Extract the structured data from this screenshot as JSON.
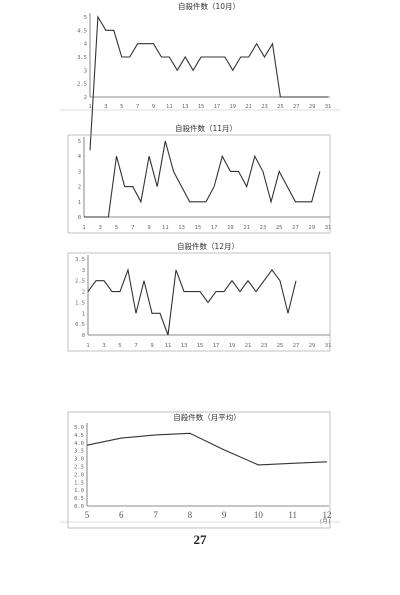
{
  "page_number": "27",
  "chart_data": [
    {
      "type": "line",
      "title": "自殺件数（10月）",
      "x": [
        1,
        2,
        3,
        4,
        5,
        6,
        7,
        8,
        9,
        10,
        11,
        12,
        13,
        14,
        15,
        16,
        17,
        18,
        19,
        20,
        21,
        22,
        23,
        24,
        25,
        26,
        27,
        28,
        29,
        30,
        31
      ],
      "series": [
        {
          "values": [
            0,
            5,
            4.5,
            4.5,
            3.5,
            3.5,
            4,
            4,
            4,
            3.5,
            3.5,
            3,
            3.5,
            3,
            3.5,
            3.5,
            3.5,
            3.5,
            3,
            3.5,
            3.5,
            4,
            3.5,
            4,
            2,
            2,
            2,
            2,
            2,
            2,
            2
          ]
        }
      ],
      "ylim": [
        2,
        5
      ],
      "yticks": [
        "2",
        "2.5",
        "3",
        "3.5",
        "4",
        "4.5",
        "5"
      ],
      "xticks": [
        "1",
        "3",
        "5",
        "7",
        "9",
        "11",
        "13",
        "15",
        "17",
        "19",
        "21",
        "23",
        "25",
        "27",
        "29",
        "31"
      ],
      "grid": false
    },
    {
      "type": "line",
      "title": "自殺件数（11月）",
      "x": [
        1,
        2,
        3,
        4,
        5,
        6,
        7,
        8,
        9,
        10,
        11,
        12,
        13,
        14,
        15,
        16,
        17,
        18,
        19,
        20,
        21,
        22,
        23,
        24,
        25,
        26,
        27,
        28,
        29,
        30
      ],
      "series": [
        {
          "values": [
            0,
            0,
            0,
            0,
            4,
            2,
            2,
            1,
            4,
            2,
            5,
            3,
            2,
            1,
            1,
            1,
            2,
            4,
            3,
            3,
            2,
            4,
            3,
            1,
            3,
            2,
            1,
            1,
            1,
            3
          ]
        }
      ],
      "ylim": [
        0,
        5
      ],
      "yticks": [
        "0",
        "1",
        "2",
        "3",
        "4",
        "5"
      ],
      "xticks": [
        "1",
        "3",
        "5",
        "7",
        "9",
        "11",
        "13",
        "15",
        "17",
        "19",
        "21",
        "23",
        "25",
        "27",
        "29",
        "31"
      ],
      "grid": false
    },
    {
      "type": "line",
      "title": "自殺件数（12月）",
      "x": [
        1,
        2,
        3,
        4,
        5,
        6,
        7,
        8,
        9,
        10,
        11,
        12,
        13,
        14,
        15,
        16,
        17,
        18,
        19,
        20,
        21,
        22,
        23,
        24,
        25,
        26,
        27
      ],
      "series": [
        {
          "values": [
            2,
            2.5,
            2.5,
            2,
            2,
            3,
            1,
            2.5,
            1,
            1,
            0,
            3,
            2,
            2,
            2,
            1.5,
            2,
            2,
            2.5,
            2,
            2.5,
            2,
            2.5,
            3,
            2.5,
            1,
            2.5
          ]
        }
      ],
      "ylim": [
        0,
        3.5
      ],
      "yticks": [
        "0",
        "0.5",
        "1",
        "1.5",
        "2",
        "2.5",
        "3",
        "3.5"
      ],
      "xticks": [
        "1",
        "3",
        "5",
        "7",
        "9",
        "11",
        "13",
        "15",
        "17",
        "19",
        "21",
        "23",
        "25",
        "27",
        "29",
        "31"
      ],
      "grid": false
    },
    {
      "type": "line",
      "title": "自殺件数（月平均）",
      "x": [
        5,
        6,
        7,
        8,
        9,
        10,
        11,
        12
      ],
      "series": [
        {
          "values": [
            3.85,
            4.3,
            4.5,
            4.6,
            3.55,
            2.6,
            2.7,
            2.8
          ]
        }
      ],
      "ylim": [
        0,
        5
      ],
      "yticks": [
        "0.0",
        "0.5",
        "1.0",
        "1.5",
        "2.0",
        "2.5",
        "3.0",
        "3.5",
        "4.0",
        "4.5",
        "5.0"
      ],
      "xticks": [
        "5",
        "6",
        "7",
        "8",
        "9",
        "10",
        "11",
        "12"
      ],
      "xunit": "(月)",
      "grid": false
    }
  ]
}
